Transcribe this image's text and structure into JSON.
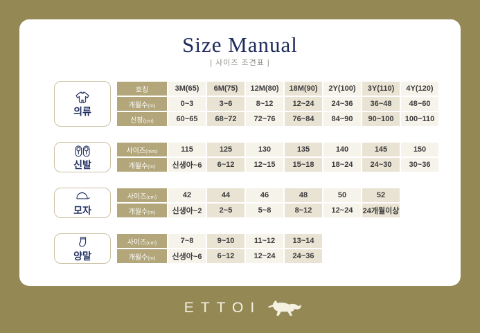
{
  "title": "Size Manual",
  "subtitle": "| 사이즈 조견표 |",
  "brand": {
    "name": "ETTOI",
    "logo_icon": "horse-icon"
  },
  "colors": {
    "background": "#948955",
    "card": "#ffffff",
    "navy": "#1f2b5b",
    "row_header": "#b2a67a",
    "cell_light": "#f6f3eb",
    "cell_beige": "#e9e3d3",
    "logo_cream": "#f4f1e0"
  },
  "tables": [
    {
      "category": "의류",
      "icon": "onesie-icon",
      "rows": [
        {
          "header": "호칭",
          "unit": "",
          "cells": [
            "3M(65)",
            "6M(75)",
            "12M(80)",
            "18M(90)",
            "2Y(100)",
            "3Y(110)",
            "4Y(120)"
          ]
        },
        {
          "header": "개월수",
          "unit": "(m)",
          "cells": [
            "0~3",
            "3~6",
            "8~12",
            "12~24",
            "24~36",
            "36~48",
            "48~60"
          ]
        },
        {
          "header": "신장",
          "unit": "(cm)",
          "cells": [
            "60~65",
            "68~72",
            "72~76",
            "76~84",
            "84~90",
            "90~100",
            "100~110"
          ]
        }
      ]
    },
    {
      "category": "신발",
      "icon": "shoes-icon",
      "rows": [
        {
          "header": "사이즈",
          "unit": "(mm)",
          "cells": [
            "115",
            "125",
            "130",
            "135",
            "140",
            "145",
            "150"
          ]
        },
        {
          "header": "개월수",
          "unit": "(m)",
          "cells": [
            "신생아~6",
            "6~12",
            "12~15",
            "15~18",
            "18~24",
            "24~30",
            "30~36"
          ]
        }
      ]
    },
    {
      "category": "모자",
      "icon": "cap-icon",
      "rows": [
        {
          "header": "사이즈",
          "unit": "(cm)",
          "cells": [
            "42",
            "44",
            "46",
            "48",
            "50",
            "52"
          ]
        },
        {
          "header": "개월수",
          "unit": "(m)",
          "cells": [
            "신생아~2",
            "2~5",
            "5~8",
            "8~12",
            "12~24",
            "24개월이상"
          ]
        }
      ]
    },
    {
      "category": "양말",
      "icon": "socks-icon",
      "rows": [
        {
          "header": "사이즈",
          "unit": "(cm)",
          "cells": [
            "7~8",
            "9~10",
            "11~12",
            "13~14"
          ]
        },
        {
          "header": "개월수",
          "unit": "(m)",
          "cells": [
            "신생아~6",
            "6~12",
            "12~24",
            "24~36"
          ]
        }
      ]
    }
  ]
}
